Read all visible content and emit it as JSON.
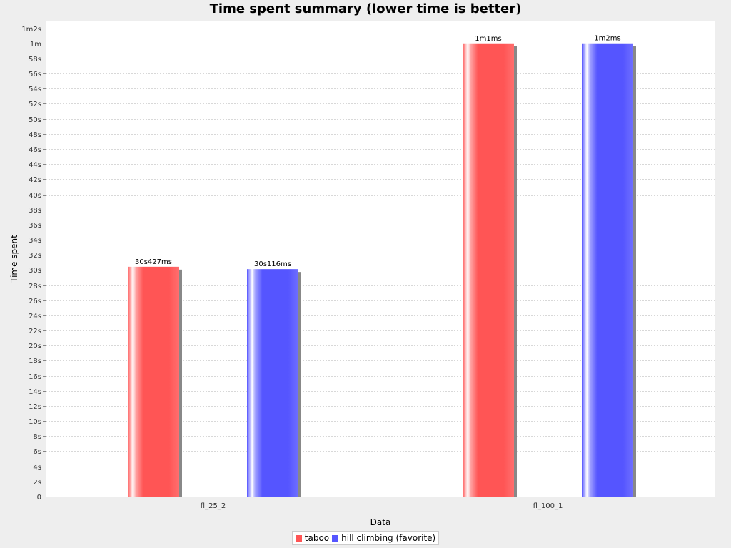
{
  "chart_data": {
    "type": "bar",
    "title": "Time spent summary (lower time is better)",
    "xlabel": "Data",
    "ylabel": "Time spent",
    "categories": [
      "fl_25_2",
      "fl_100_1"
    ],
    "series": [
      {
        "name": "taboo",
        "color": "#ff5555",
        "values_seconds": [
          30.427,
          60.001
        ],
        "value_labels": [
          "30s427ms",
          "1m1ms"
        ]
      },
      {
        "name": "hill climbing (favorite)",
        "color": "#5555ff",
        "values_seconds": [
          30.116,
          60.002
        ],
        "value_labels": [
          "30s116ms",
          "1m2ms"
        ]
      }
    ],
    "ylim_seconds": [
      0,
      63
    ],
    "y_ticks": [
      {
        "value": 0,
        "label": "0"
      },
      {
        "value": 2,
        "label": "2s"
      },
      {
        "value": 4,
        "label": "4s"
      },
      {
        "value": 6,
        "label": "6s"
      },
      {
        "value": 8,
        "label": "8s"
      },
      {
        "value": 10,
        "label": "10s"
      },
      {
        "value": 12,
        "label": "12s"
      },
      {
        "value": 14,
        "label": "14s"
      },
      {
        "value": 16,
        "label": "16s"
      },
      {
        "value": 18,
        "label": "18s"
      },
      {
        "value": 20,
        "label": "20s"
      },
      {
        "value": 22,
        "label": "22s"
      },
      {
        "value": 24,
        "label": "24s"
      },
      {
        "value": 26,
        "label": "26s"
      },
      {
        "value": 28,
        "label": "28s"
      },
      {
        "value": 30,
        "label": "30s"
      },
      {
        "value": 32,
        "label": "32s"
      },
      {
        "value": 34,
        "label": "34s"
      },
      {
        "value": 36,
        "label": "36s"
      },
      {
        "value": 38,
        "label": "38s"
      },
      {
        "value": 40,
        "label": "40s"
      },
      {
        "value": 42,
        "label": "42s"
      },
      {
        "value": 44,
        "label": "44s"
      },
      {
        "value": 46,
        "label": "46s"
      },
      {
        "value": 48,
        "label": "48s"
      },
      {
        "value": 50,
        "label": "50s"
      },
      {
        "value": 52,
        "label": "52s"
      },
      {
        "value": 54,
        "label": "54s"
      },
      {
        "value": 56,
        "label": "56s"
      },
      {
        "value": 58,
        "label": "58s"
      },
      {
        "value": 60,
        "label": "1m"
      },
      {
        "value": 62,
        "label": "1m2s"
      }
    ],
    "grid": true,
    "legend_position": "bottom-center"
  }
}
